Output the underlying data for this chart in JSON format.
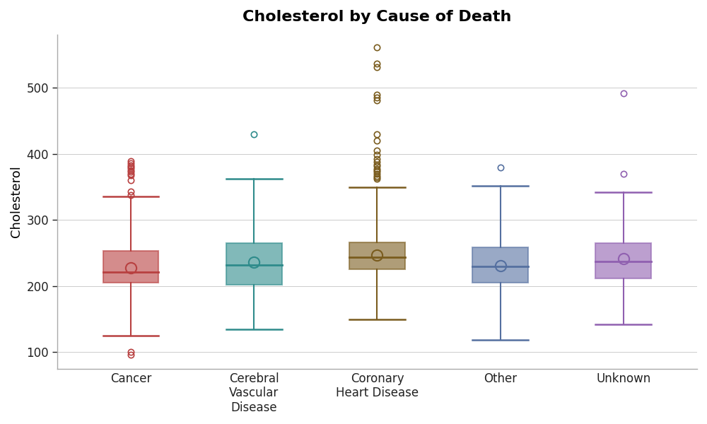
{
  "title": "Cholesterol by Cause of Death",
  "ylabel": "Cholesterol",
  "categories": [
    "Cancer",
    "Cerebral\nVascular\nDisease",
    "Coronary\nHeart Disease",
    "Other",
    "Unknown"
  ],
  "colors": [
    "#b84040",
    "#2e8b8b",
    "#7a5c1e",
    "#5570a0",
    "#9060b0"
  ],
  "boxes": [
    {
      "q1": 205,
      "median": 221,
      "q3": 253,
      "whisker_low": 125,
      "whisker_high": 336,
      "mean": 228,
      "outliers": [
        96,
        100,
        338,
        343,
        360,
        368,
        370,
        373,
        375,
        378,
        380,
        383,
        386,
        389
      ]
    },
    {
      "q1": 202,
      "median": 232,
      "q3": 265,
      "whisker_low": 135,
      "whisker_high": 362,
      "mean": 236,
      "outliers": [
        430
      ]
    },
    {
      "q1": 225,
      "median": 244,
      "q3": 266,
      "whisker_low": 150,
      "whisker_high": 349,
      "mean": 247,
      "outliers": [
        362,
        364,
        367,
        370,
        373,
        375,
        377,
        381,
        384,
        388,
        392,
        399,
        405,
        420,
        430,
        481,
        485,
        490,
        531,
        536,
        561
      ]
    },
    {
      "q1": 205,
      "median": 230,
      "q3": 258,
      "whisker_low": 118,
      "whisker_high": 352,
      "mean": 231,
      "outliers": [
        379
      ]
    },
    {
      "q1": 212,
      "median": 237,
      "q3": 265,
      "whisker_low": 142,
      "whisker_high": 342,
      "mean": 241,
      "outliers": [
        370,
        492
      ]
    }
  ],
  "ylim": [
    75,
    580
  ],
  "yticks": [
    100,
    200,
    300,
    400,
    500
  ],
  "background_color": "#ffffff",
  "box_width": 0.45,
  "title_fontsize": 16,
  "label_fontsize": 13,
  "tick_fontsize": 12
}
